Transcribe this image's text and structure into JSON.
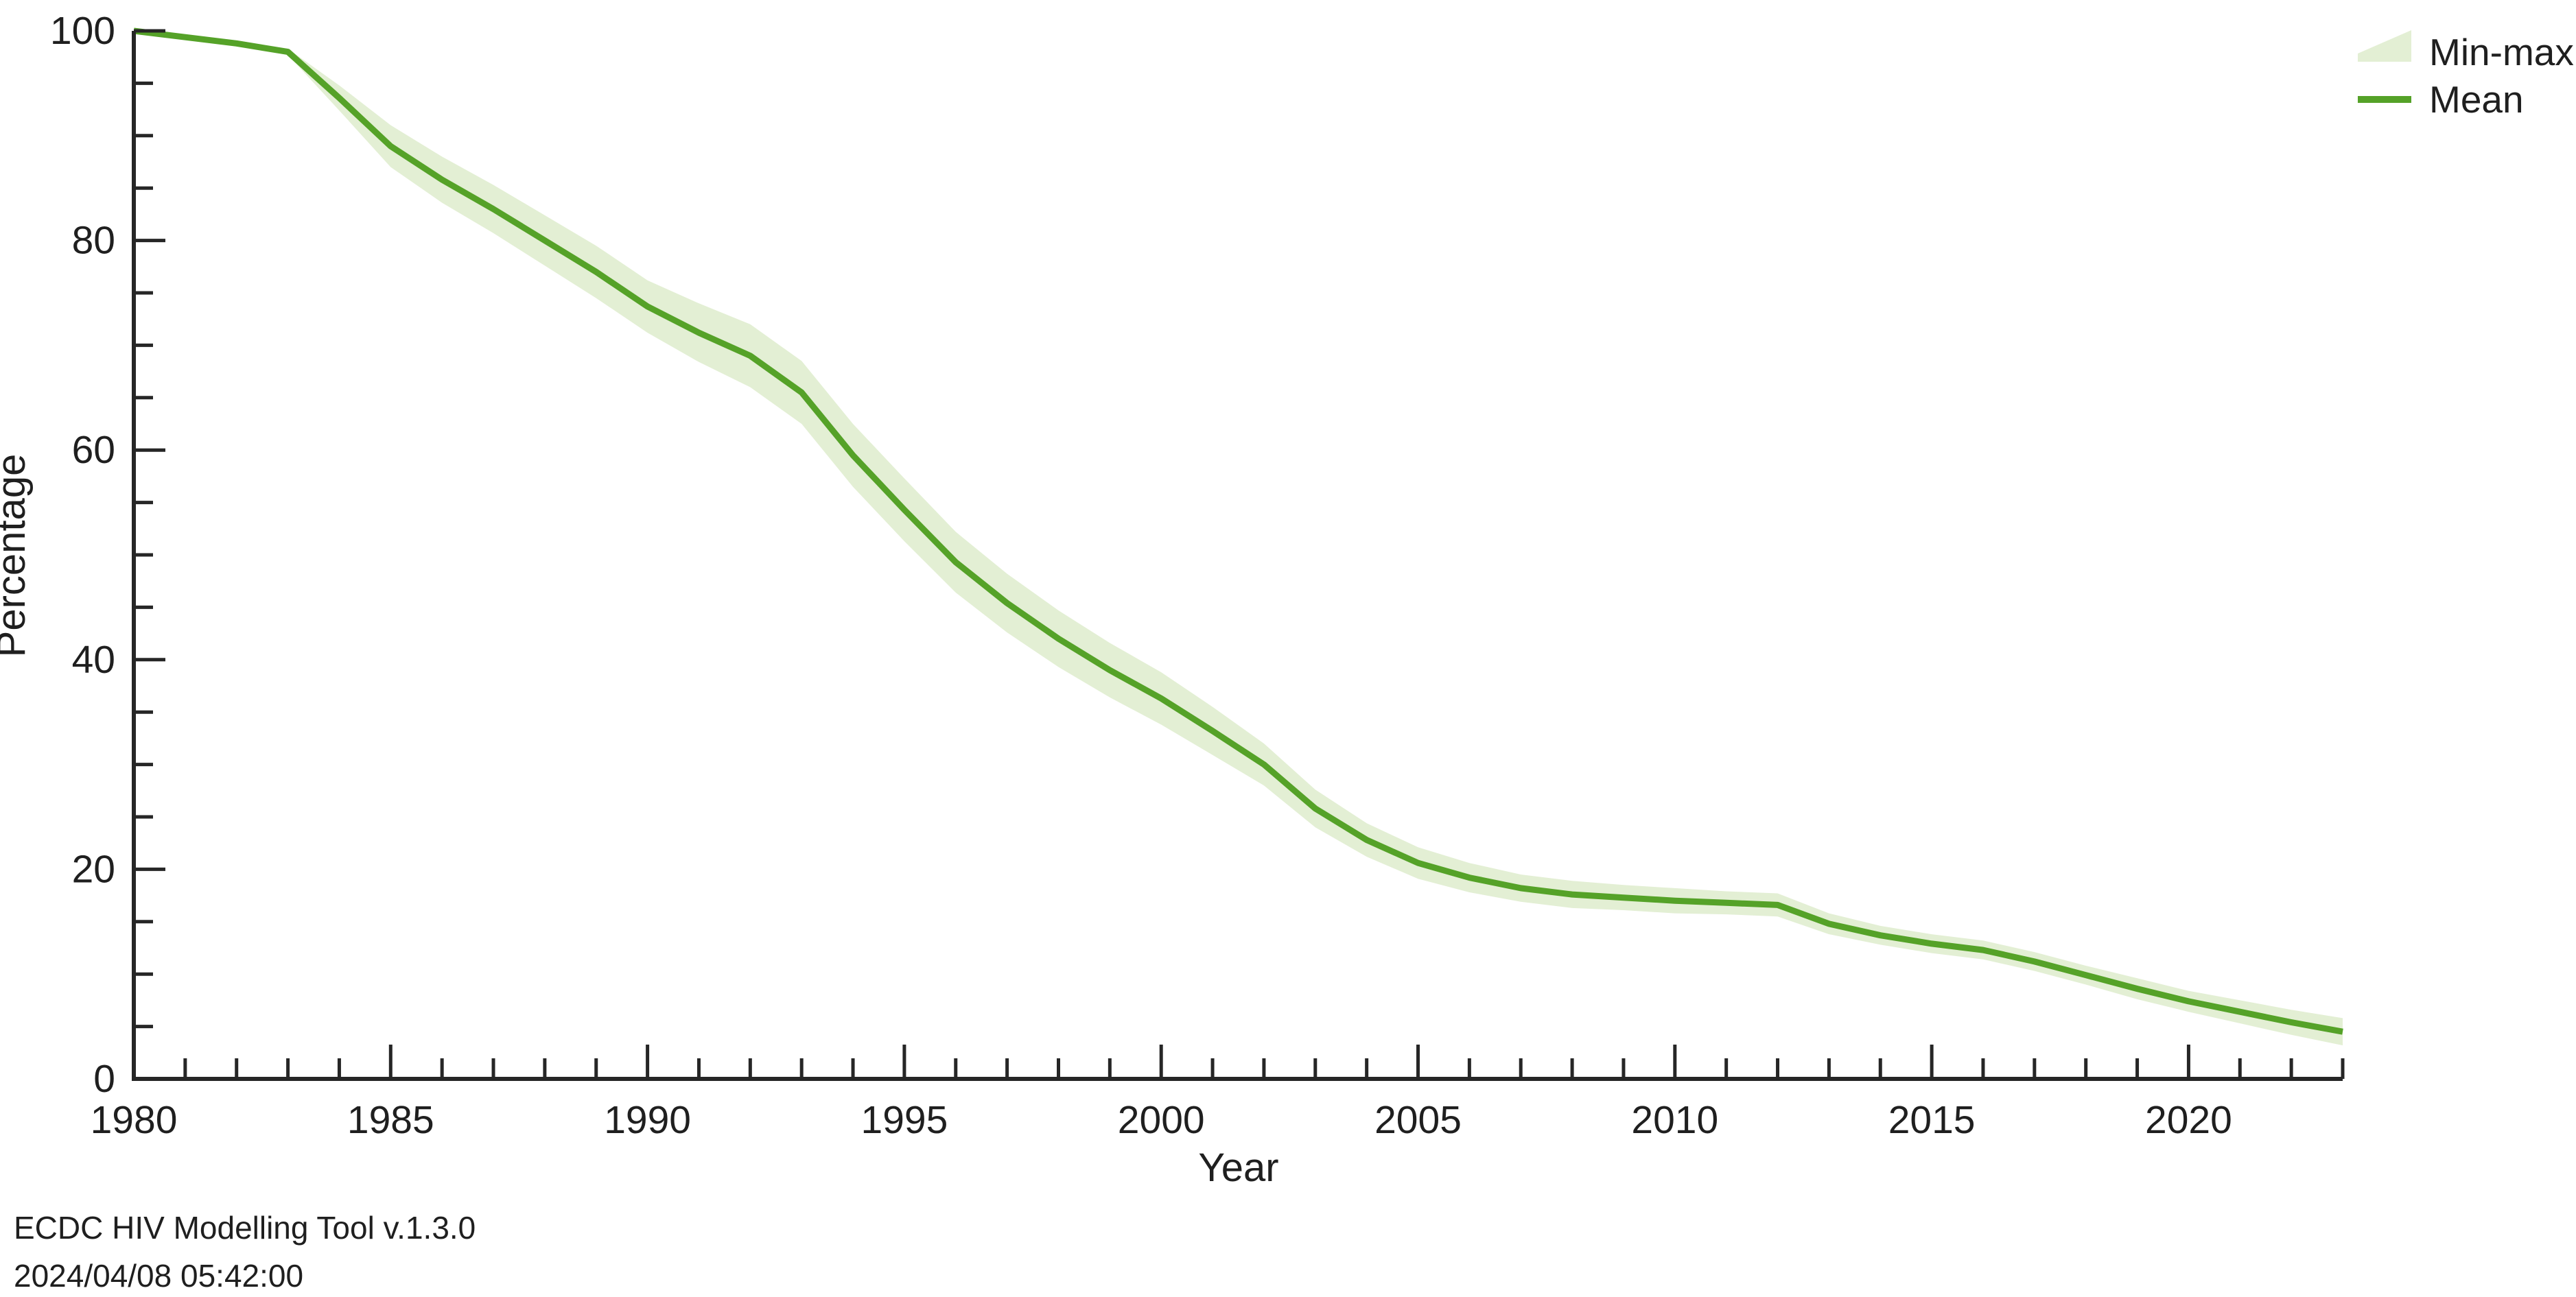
{
  "chart_data": {
    "type": "line",
    "title": "",
    "xlabel": "Year",
    "ylabel": "Percentage",
    "x_range": [
      1980,
      2023
    ],
    "y_range": [
      0,
      100
    ],
    "x_ticks_major": [
      1980,
      1985,
      1990,
      1995,
      2000,
      2005,
      2010,
      2015,
      2020
    ],
    "x_minor_step": 1,
    "y_ticks_major": [
      0,
      20,
      40,
      60,
      80,
      100
    ],
    "y_minor_step": 5,
    "grid": false,
    "legend_position": "top-right",
    "legend": [
      {
        "label": "Min-max",
        "swatch": "area"
      },
      {
        "label": "Mean",
        "swatch": "line"
      }
    ],
    "colors": {
      "mean_line": "#55a228",
      "minmax_band": "#e3efd4",
      "axis": "#262626",
      "text": "#1f1f1f"
    },
    "years": [
      1980,
      1981,
      1982,
      1983,
      1984,
      1985,
      1986,
      1987,
      1988,
      1989,
      1990,
      1991,
      1992,
      1993,
      1994,
      1995,
      1996,
      1997,
      1998,
      1999,
      2000,
      2001,
      2002,
      2003,
      2004,
      2005,
      2006,
      2007,
      2008,
      2009,
      2010,
      2011,
      2012,
      2013,
      2014,
      2015,
      2016,
      2017,
      2018,
      2019,
      2020,
      2021,
      2022,
      2023
    ],
    "series": [
      {
        "name": "Mean",
        "values": [
          100,
          99.4,
          98.8,
          98,
          93.6,
          89,
          85.8,
          83,
          80,
          77,
          73.7,
          71.2,
          69,
          65.5,
          59.5,
          54.3,
          49.3,
          45.4,
          42,
          39,
          36.3,
          33.2,
          30,
          25.8,
          22.8,
          20.6,
          19.2,
          18.2,
          17.6,
          17.3,
          17,
          16.8,
          16.6,
          14.8,
          13.7,
          12.9,
          12.3,
          11.2,
          9.9,
          8.6,
          7.4,
          6.4,
          5.4,
          4.5
        ]
      },
      {
        "name": "Min",
        "values": [
          100,
          99.4,
          98.8,
          97.7,
          92.4,
          87,
          83.6,
          80.7,
          77.6,
          74.5,
          71.2,
          68.4,
          66,
          62.5,
          56.5,
          51.3,
          46.4,
          42.6,
          39.3,
          36.4,
          33.8,
          30.9,
          28,
          24,
          21.2,
          19.1,
          17.8,
          16.9,
          16.3,
          16.1,
          15.8,
          15.7,
          15.5,
          13.8,
          12.8,
          12,
          11.4,
          10.3,
          9,
          7.6,
          6.4,
          5.3,
          4.2,
          3.2
        ]
      },
      {
        "name": "Max",
        "values": [
          100,
          99.4,
          98.8,
          98.3,
          94.8,
          91,
          88,
          85.3,
          82.4,
          79.5,
          76.2,
          74,
          72,
          68.5,
          62.5,
          57.3,
          52.2,
          48.2,
          44.7,
          41.6,
          38.8,
          35.5,
          32,
          27.6,
          24.4,
          22.1,
          20.6,
          19.5,
          18.9,
          18.5,
          18.2,
          17.9,
          17.7,
          15.8,
          14.6,
          13.8,
          13.2,
          12.1,
          10.8,
          9.6,
          8.4,
          7.5,
          6.6,
          5.8
        ]
      }
    ]
  },
  "footer": {
    "line1": "ECDC HIV Modelling Tool v.1.3.0",
    "line2": "2024/04/08 05:42:00"
  }
}
